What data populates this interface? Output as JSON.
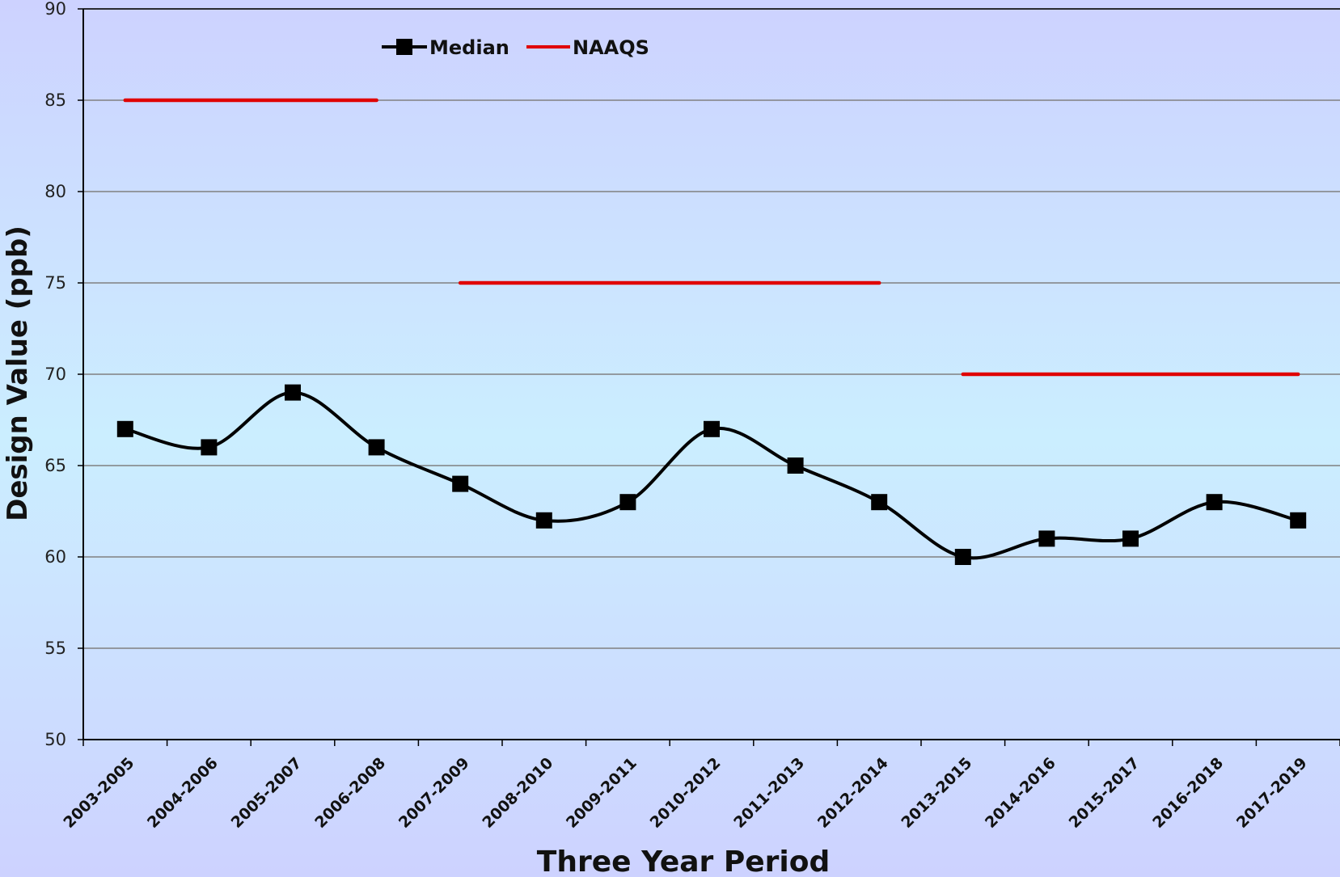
{
  "colors": {
    "median": "#000000",
    "naaqs": "#e00000",
    "gridline": "#808080",
    "bg_edge": "#cdd2ff",
    "bg_center": "#cbeeff"
  },
  "chart_data": {
    "type": "line",
    "xlabel": "Three Year Period",
    "ylabel": "Design Value (ppb)",
    "ylim": [
      50,
      90
    ],
    "yticks": [
      50,
      55,
      60,
      65,
      70,
      75,
      80,
      85,
      90
    ],
    "grid": true,
    "legend_position": "top-left",
    "categories": [
      "2003-2005",
      "2004-2006",
      "2005-2007",
      "2006-2008",
      "2007-2009",
      "2008-2010",
      "2009-2011",
      "2010-2012",
      "2011-2013",
      "2012-2014",
      "2013-2015",
      "2014-2016",
      "2015-2017",
      "2016-2018",
      "2017-2019"
    ],
    "series": [
      {
        "name": "Median",
        "marker": "square",
        "smooth": true,
        "values": [
          67,
          66,
          69,
          66,
          64,
          62,
          63,
          67,
          65,
          63,
          60,
          61,
          61,
          63,
          62
        ]
      },
      {
        "name": "NAAQS",
        "marker": "none",
        "values": [
          85,
          85,
          85,
          85,
          75,
          75,
          75,
          75,
          75,
          75,
          70,
          70,
          70,
          70,
          70
        ]
      }
    ]
  }
}
